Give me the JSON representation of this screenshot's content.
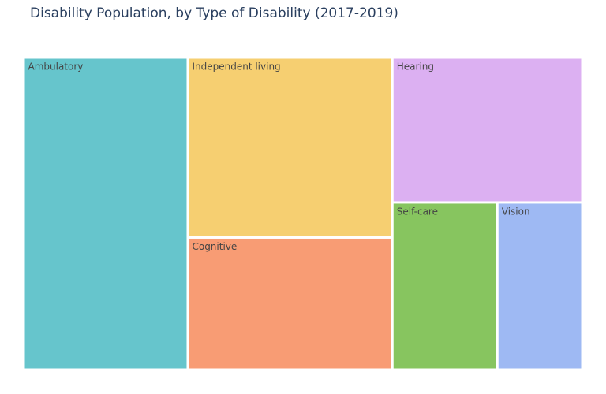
{
  "chart_data": {
    "type": "treemap",
    "title": "Disability Population, by Type of Disability (2017-2019)",
    "labels": [
      "Ambulatory",
      "Independent living",
      "Cognitive",
      "Hearing",
      "Self-care",
      "Vision"
    ],
    "values": [
      29.2,
      21.0,
      15.4,
      15.7,
      10.0,
      8.1
    ],
    "colors": [
      "#66c5cc",
      "#f6cf71",
      "#f89c74",
      "#dcb0f2",
      "#87c55f",
      "#9eb9f3"
    ]
  }
}
